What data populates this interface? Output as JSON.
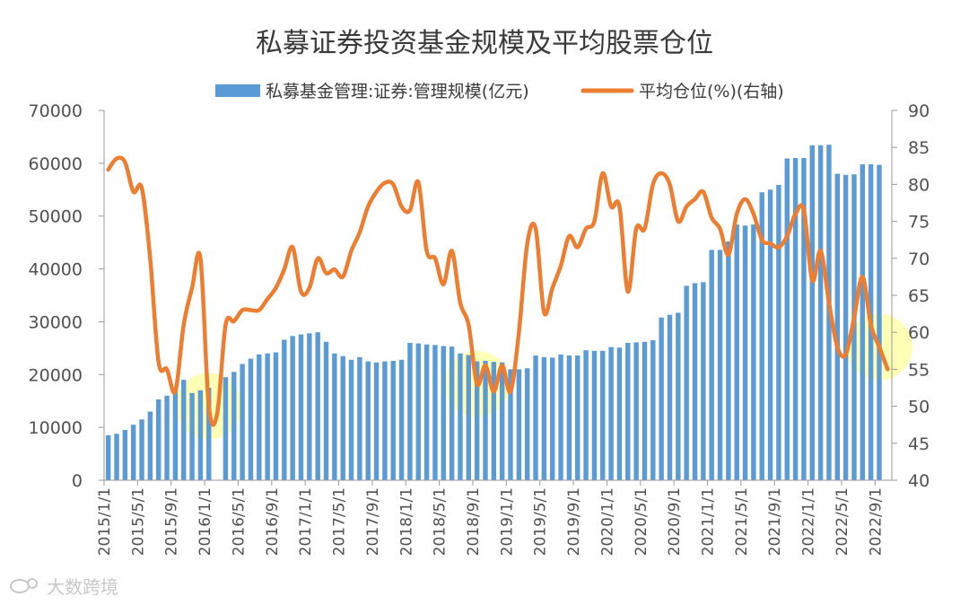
{
  "watermark": "大数跨境",
  "chart_data": {
    "type": "bar+line",
    "title": "私募证券投资基金规模及平均股票仓位",
    "legend": [
      "私募基金管理:证券:管理规模(亿元)",
      "平均仓位(%)(右轴)"
    ],
    "colors": {
      "bar": "#5b9bd5",
      "line": "#ed7d31",
      "highlight": "#ffff7a"
    },
    "left_axis": {
      "min": 0,
      "max": 70000,
      "ticks": [
        "0",
        "10000",
        "20000",
        "30000",
        "40000",
        "50000",
        "60000",
        "70000"
      ]
    },
    "right_axis": {
      "min": 40,
      "max": 90,
      "ticks": [
        "40",
        "45",
        "50",
        "55",
        "60",
        "65",
        "70",
        "75",
        "80",
        "85",
        "90"
      ]
    },
    "x_tick_labels": [
      "2015/1/1",
      "2015/5/1",
      "2015/9/1",
      "2016/1/1",
      "2016/5/1",
      "2016/9/1",
      "2017/1/1",
      "2017/5/1",
      "2017/9/1",
      "2018/1/1",
      "2018/5/1",
      "2018/9/1",
      "2019/1/1",
      "2019/5/1",
      "2019/9/1",
      "2020/1/1",
      "2020/5/1",
      "2020/9/1",
      "2021/1/1",
      "2021/5/1",
      "2021/9/1",
      "2022/1/1",
      "2022/5/1",
      "2022/9/1"
    ],
    "months": [
      "2015-01",
      "2015-02",
      "2015-03",
      "2015-04",
      "2015-05",
      "2015-06",
      "2015-07",
      "2015-08",
      "2015-09",
      "2015-10",
      "2015-11",
      "2015-12",
      "2016-01",
      "2016-02",
      "2016-03",
      "2016-04",
      "2016-05",
      "2016-06",
      "2016-07",
      "2016-08",
      "2016-09",
      "2016-10",
      "2016-11",
      "2016-12",
      "2017-01",
      "2017-02",
      "2017-03",
      "2017-04",
      "2017-05",
      "2017-06",
      "2017-07",
      "2017-08",
      "2017-09",
      "2017-10",
      "2017-11",
      "2017-12",
      "2018-01",
      "2018-02",
      "2018-03",
      "2018-04",
      "2018-05",
      "2018-06",
      "2018-07",
      "2018-08",
      "2018-09",
      "2018-10",
      "2018-11",
      "2018-12",
      "2019-01",
      "2019-02",
      "2019-03",
      "2019-04",
      "2019-05",
      "2019-06",
      "2019-07",
      "2019-08",
      "2019-09",
      "2019-10",
      "2019-11",
      "2019-12",
      "2020-01",
      "2020-02",
      "2020-03",
      "2020-04",
      "2020-05",
      "2020-06",
      "2020-07",
      "2020-08",
      "2020-09",
      "2020-10",
      "2020-11",
      "2020-12",
      "2021-01",
      "2021-02",
      "2021-03",
      "2021-04",
      "2021-05",
      "2021-06",
      "2021-07",
      "2021-08",
      "2021-09",
      "2021-10",
      "2021-11",
      "2021-12",
      "2022-01",
      "2022-02",
      "2022-03",
      "2022-04",
      "2022-05",
      "2022-06",
      "2022-07",
      "2022-08",
      "2022-09",
      "2022-10"
    ],
    "scale_values": [
      8500,
      8800,
      9500,
      10500,
      11500,
      13000,
      15300,
      16000,
      17000,
      19000,
      16500,
      17000,
      17500,
      0,
      19500,
      20500,
      22000,
      23000,
      23800,
      24000,
      24200,
      26600,
      27300,
      27600,
      27800,
      28000,
      26200,
      24000,
      23500,
      22800,
      23300,
      22500,
      22300,
      22500,
      22600,
      22800,
      26000,
      25900,
      25700,
      25600,
      25400,
      25300,
      24000,
      23700,
      22500,
      22600,
      22400,
      22300,
      21000,
      21000,
      21200,
      23600,
      23300,
      23200,
      23800,
      23600,
      23600,
      24600,
      24500,
      24500,
      25200,
      25100,
      26000,
      26100,
      26200,
      26500,
      30800,
      31300,
      31700,
      36800,
      37300,
      37500,
      43600,
      43600,
      45200,
      48400,
      48200,
      48400,
      54500,
      55000,
      55900,
      60900,
      61000,
      61000,
      63400,
      63400,
      63500,
      58000,
      57800,
      57900,
      59800,
      59800,
      59700,
      0
    ],
    "position_values": [
      82,
      83.5,
      83,
      79,
      79.5,
      70,
      56,
      55,
      52,
      61,
      66,
      70,
      50,
      49,
      61,
      61.5,
      63,
      63,
      63,
      64.5,
      66,
      68.5,
      71.5,
      65.5,
      66,
      70,
      68,
      68.5,
      67.5,
      71,
      73.5,
      77,
      79,
      80.2,
      80,
      77,
      76.5,
      80.3,
      71,
      70,
      66.5,
      71,
      64,
      61,
      53,
      55.5,
      52,
      55.5,
      52,
      60,
      72,
      74,
      62.7,
      66,
      69,
      73,
      71.5,
      74,
      75,
      81.5,
      77,
      77,
      65.5,
      74,
      74,
      80,
      81.5,
      80,
      75,
      77,
      78,
      79,
      75.5,
      74,
      70.5,
      76,
      78,
      76,
      72.5,
      72,
      71.5,
      73,
      76,
      76.5,
      67,
      71,
      64,
      58,
      57,
      62,
      67.5,
      61,
      58,
      55
    ],
    "highlight_months": [
      "2016-01",
      "2018-09",
      "2022-09"
    ]
  }
}
